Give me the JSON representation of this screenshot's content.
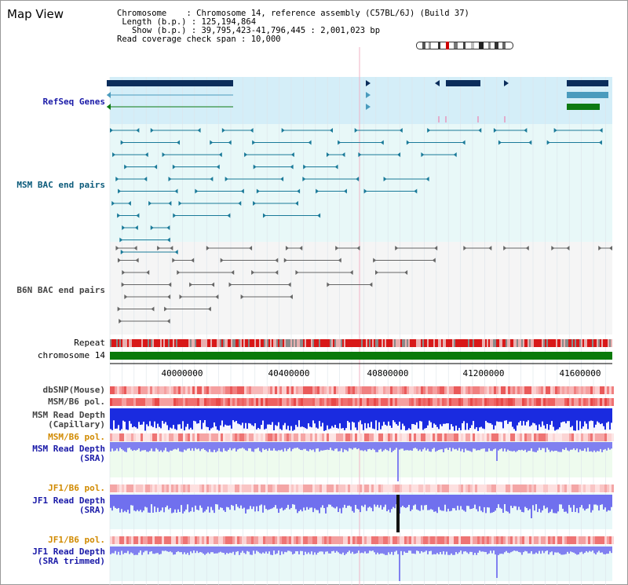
{
  "title": "Map View",
  "info": {
    "chromosome_label": "Chromosome",
    "chromosome_value": "Chromosome 14, reference assembly (C57BL/6J) (Build 37)",
    "length_label": "Length (b.p.)",
    "length_value": "125,194,864",
    "show_label": "Show (b.p.)",
    "show_value": "39,795,423-41,796,445 : 2,001,023 bp",
    "coverage_label": "Read coverage check span",
    "coverage_value": "10,000"
  },
  "tracks": {
    "refseq": "RefSeq Genes",
    "msm_bac": "MSM BAC end pairs",
    "b6n_bac": "B6N BAC end pairs",
    "repeat": "Repeat",
    "chromosome": "chromosome 14",
    "dbsnp": "dbSNP(Mouse)",
    "msm_b6_pol_1": "MSM/B6 pol.",
    "msm_read_depth_cap_1": "MSM Read Depth",
    "msm_read_depth_cap_2": "(Capillary)",
    "msm_b6_pol_2": "MSM/B6 pol.",
    "msm_read_depth_sra_1": "MSM Read Depth",
    "msm_read_depth_sra_2": "(SRA)",
    "jf1_b6_pol_1": "JF1/B6 pol.",
    "jf1_read_depth_sra_1": "JF1 Read Depth",
    "jf1_read_depth_sra_2": "(SRA)",
    "jf1_b6_pol_2": "JF1/B6 pol.",
    "jf1_read_depth_trim_1": "JF1 Read Depth",
    "jf1_read_depth_trim_2": "(SRA trimmed)"
  },
  "axis": {
    "ticks": [
      "40000000",
      "40400000",
      "40800000",
      "41200000",
      "41600000"
    ]
  },
  "colors": {
    "refseq_dark": "#0b2d5b",
    "refseq_mid": "#4a9bbd",
    "refseq_green": "#0d7a12",
    "msm_bac": "#1a7a99",
    "b6n_bac": "#666666",
    "label_blue": "#1a1aa8",
    "label_teal": "#0a5a7a",
    "label_gray": "#444444",
    "label_orange": "#d18a00",
    "chromosome_bar": "#0a7a0a"
  }
}
